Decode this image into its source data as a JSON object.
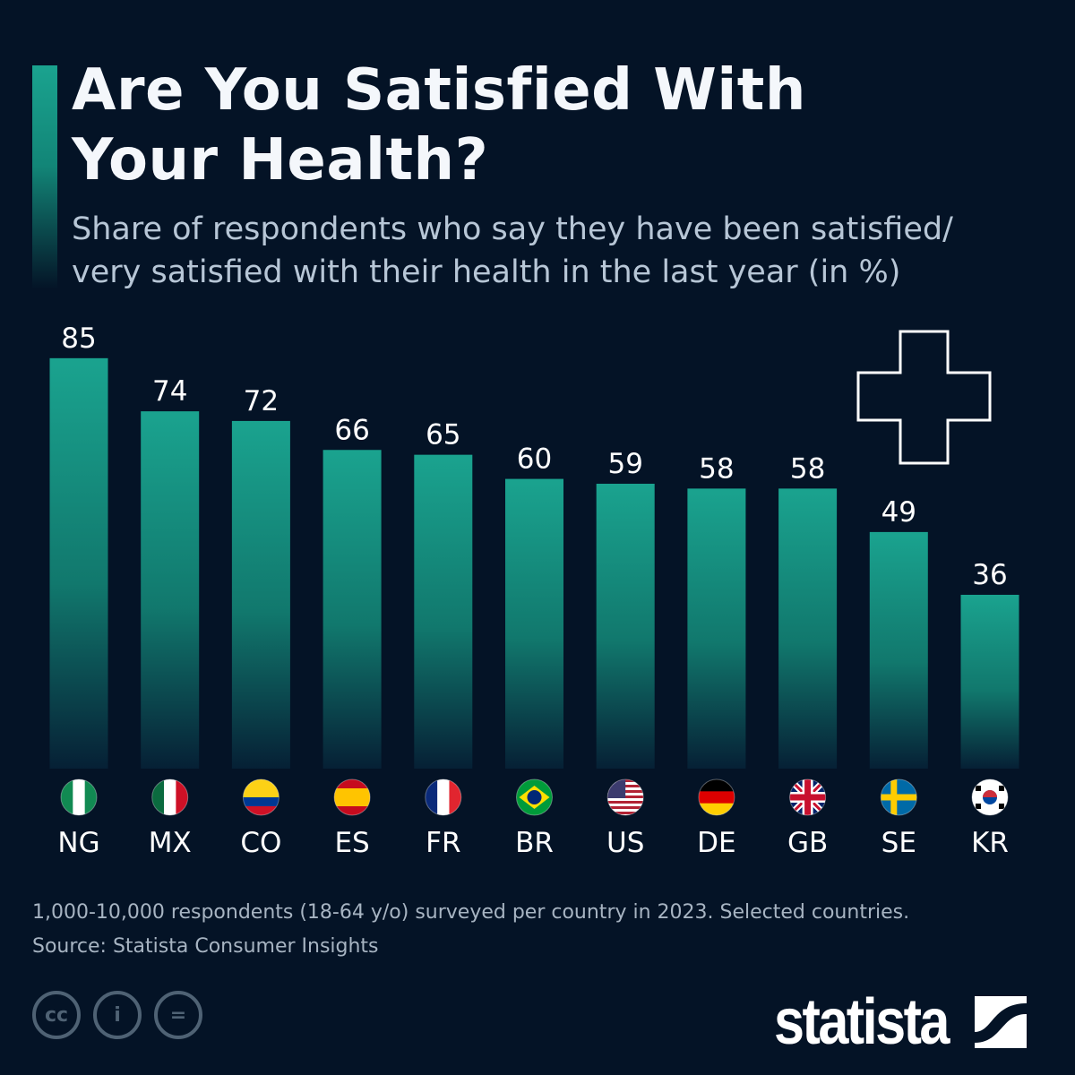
{
  "header": {
    "title": "Are You Satisfied With Your Health?",
    "subtitle_line1": "Share of respondents who say they have been satisfied/",
    "subtitle_line2": "very satisfied with their health in the last year (in %)"
  },
  "chart_data": {
    "type": "bar",
    "title": "Are You Satisfied With Your Health?",
    "categories": [
      "NG",
      "MX",
      "CO",
      "ES",
      "FR",
      "BR",
      "US",
      "DE",
      "GB",
      "SE",
      "KR"
    ],
    "values": [
      85,
      74,
      72,
      66,
      65,
      60,
      59,
      58,
      58,
      49,
      36
    ],
    "ylim": [
      0,
      85
    ],
    "grid": false,
    "data_labels": true,
    "bar_color": "#1aa38f",
    "background": "#041326",
    "decoration": "medical-cross-icon"
  },
  "footer": {
    "note": "1,000-10,000 respondents (18-64 y/o) surveyed per country in 2023. Selected countries.",
    "source": "Source: Statista Consumer Insights",
    "license_icons": [
      "cc-icon",
      "attribution-icon",
      "no-derivatives-icon"
    ],
    "brand": "statista"
  }
}
